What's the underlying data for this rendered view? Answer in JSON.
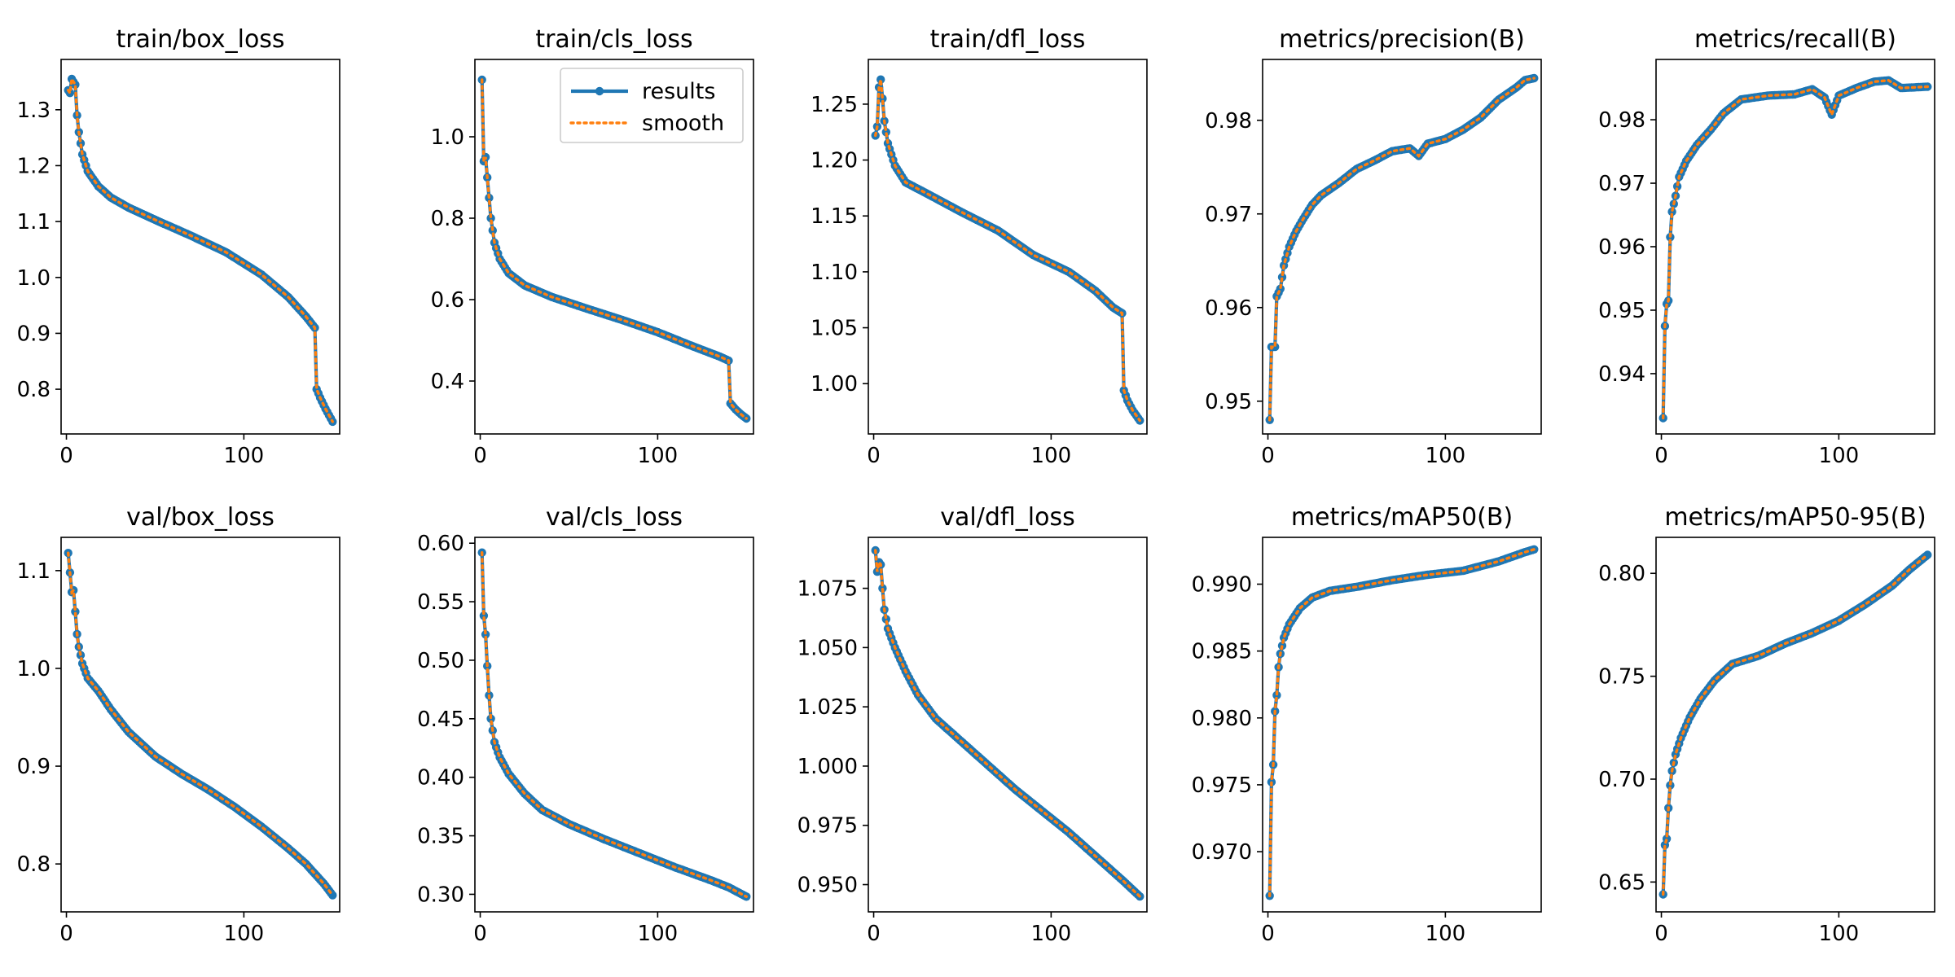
{
  "colors": {
    "results": "#1f77b4",
    "smooth": "#ff7f0e",
    "axes": "#000000",
    "background": "#ffffff"
  },
  "legend": {
    "results_label": "results",
    "smooth_label": "smooth",
    "placement": "upper-right of train/cls_loss"
  },
  "chart_data": [
    {
      "type": "line",
      "title": "train/box_loss",
      "xlim": [
        -3,
        154
      ],
      "ylim": [
        0.72,
        1.39
      ],
      "xticks": [
        0,
        100
      ],
      "xtick_labels": [
        "0",
        "100"
      ],
      "yticks": [
        0.8,
        0.9,
        1.0,
        1.1,
        1.2,
        1.3
      ],
      "ytick_labels": [
        "0.8",
        "0.9",
        "1.0",
        "1.1",
        "1.2",
        "1.3"
      ],
      "anchors": [
        [
          1,
          1.335
        ],
        [
          2,
          1.33
        ],
        [
          3,
          1.355
        ],
        [
          5,
          1.345
        ],
        [
          6,
          1.29
        ],
        [
          7,
          1.26
        ],
        [
          9,
          1.22
        ],
        [
          12,
          1.19
        ],
        [
          18,
          1.163
        ],
        [
          25,
          1.143
        ],
        [
          35,
          1.125
        ],
        [
          50,
          1.103
        ],
        [
          70,
          1.075
        ],
        [
          90,
          1.045
        ],
        [
          110,
          1.005
        ],
        [
          125,
          0.965
        ],
        [
          135,
          0.93
        ],
        [
          140,
          0.91
        ],
        [
          141,
          0.8
        ],
        [
          143,
          0.785
        ],
        [
          146,
          0.765
        ],
        [
          150,
          0.742
        ]
      ]
    },
    {
      "type": "line",
      "title": "train/cls_loss",
      "xlim": [
        -3,
        154
      ],
      "ylim": [
        0.27,
        1.19
      ],
      "xticks": [
        0,
        100
      ],
      "xtick_labels": [
        "0",
        "100"
      ],
      "yticks": [
        0.4,
        0.6,
        0.8,
        1.0
      ],
      "ytick_labels": [
        "0.4",
        "0.6",
        "0.8",
        "1.0"
      ],
      "anchors": [
        [
          1,
          1.14
        ],
        [
          2,
          0.94
        ],
        [
          3,
          0.95
        ],
        [
          4,
          0.9
        ],
        [
          6,
          0.8
        ],
        [
          8,
          0.74
        ],
        [
          11,
          0.7
        ],
        [
          16,
          0.665
        ],
        [
          25,
          0.635
        ],
        [
          40,
          0.607
        ],
        [
          60,
          0.578
        ],
        [
          80,
          0.55
        ],
        [
          100,
          0.52
        ],
        [
          120,
          0.485
        ],
        [
          135,
          0.46
        ],
        [
          140,
          0.45
        ],
        [
          141,
          0.345
        ],
        [
          144,
          0.33
        ],
        [
          147,
          0.318
        ],
        [
          150,
          0.308
        ]
      ]
    },
    {
      "type": "line",
      "title": "train/dfl_loss",
      "xlim": [
        -3,
        154
      ],
      "ylim": [
        0.955,
        1.29
      ],
      "xticks": [
        0,
        100
      ],
      "xtick_labels": [
        "0",
        "100"
      ],
      "yticks": [
        1.0,
        1.05,
        1.1,
        1.15,
        1.2,
        1.25
      ],
      "ytick_labels": [
        "1.00",
        "1.05",
        "1.10",
        "1.15",
        "1.20",
        "1.25"
      ],
      "anchors": [
        [
          1,
          1.222
        ],
        [
          2,
          1.23
        ],
        [
          3,
          1.265
        ],
        [
          4,
          1.272
        ],
        [
          5,
          1.255
        ],
        [
          6,
          1.235
        ],
        [
          8,
          1.215
        ],
        [
          12,
          1.195
        ],
        [
          18,
          1.18
        ],
        [
          30,
          1.17
        ],
        [
          50,
          1.153
        ],
        [
          70,
          1.137
        ],
        [
          90,
          1.115
        ],
        [
          110,
          1.1
        ],
        [
          125,
          1.083
        ],
        [
          135,
          1.068
        ],
        [
          140,
          1.063
        ],
        [
          141,
          0.994
        ],
        [
          143,
          0.985
        ],
        [
          146,
          0.976
        ],
        [
          150,
          0.967
        ]
      ]
    },
    {
      "type": "line",
      "title": "metrics/precision(B)",
      "xlim": [
        -3,
        154
      ],
      "ylim": [
        0.9465,
        0.9865
      ],
      "xticks": [
        0,
        100
      ],
      "xtick_labels": [
        "0",
        "100"
      ],
      "yticks": [
        0.95,
        0.96,
        0.97,
        0.98
      ],
      "ytick_labels": [
        "0.95",
        "0.96",
        "0.97",
        "0.98"
      ],
      "anchors": [
        [
          1,
          0.948
        ],
        [
          2,
          0.9558
        ],
        [
          4,
          0.9558
        ],
        [
          5,
          0.9612
        ],
        [
          7,
          0.962
        ],
        [
          9,
          0.9645
        ],
        [
          12,
          0.9665
        ],
        [
          16,
          0.9682
        ],
        [
          20,
          0.9695
        ],
        [
          25,
          0.971
        ],
        [
          30,
          0.972
        ],
        [
          40,
          0.9733
        ],
        [
          50,
          0.9748
        ],
        [
          60,
          0.9757
        ],
        [
          70,
          0.9767
        ],
        [
          80,
          0.977
        ],
        [
          85,
          0.9762
        ],
        [
          90,
          0.9775
        ],
        [
          100,
          0.978
        ],
        [
          110,
          0.979
        ],
        [
          120,
          0.9803
        ],
        [
          130,
          0.9822
        ],
        [
          140,
          0.9835
        ],
        [
          145,
          0.9843
        ],
        [
          150,
          0.9845
        ]
      ]
    },
    {
      "type": "line",
      "title": "metrics/recall(B)",
      "xlim": [
        -3,
        154
      ],
      "ylim": [
        0.9305,
        0.9895
      ],
      "xticks": [
        0,
        100
      ],
      "xtick_labels": [
        "0",
        "100"
      ],
      "yticks": [
        0.94,
        0.95,
        0.96,
        0.97,
        0.98
      ],
      "ytick_labels": [
        "0.94",
        "0.95",
        "0.96",
        "0.97",
        "0.98"
      ],
      "anchors": [
        [
          1,
          0.933
        ],
        [
          2,
          0.9475
        ],
        [
          3,
          0.951
        ],
        [
          4,
          0.9515
        ],
        [
          5,
          0.9615
        ],
        [
          6,
          0.9655
        ],
        [
          8,
          0.968
        ],
        [
          10,
          0.971
        ],
        [
          14,
          0.9735
        ],
        [
          20,
          0.976
        ],
        [
          28,
          0.9785
        ],
        [
          35,
          0.981
        ],
        [
          45,
          0.9832
        ],
        [
          60,
          0.9838
        ],
        [
          75,
          0.984
        ],
        [
          85,
          0.9848
        ],
        [
          92,
          0.9835
        ],
        [
          96,
          0.9808
        ],
        [
          100,
          0.9838
        ],
        [
          110,
          0.985
        ],
        [
          120,
          0.986
        ],
        [
          128,
          0.9862
        ],
        [
          135,
          0.985
        ],
        [
          150,
          0.9852
        ]
      ]
    },
    {
      "type": "line",
      "title": "val/box_loss",
      "xlim": [
        -3,
        154
      ],
      "ylim": [
        0.751,
        1.134
      ],
      "xticks": [
        0,
        100
      ],
      "xtick_labels": [
        "0",
        "100"
      ],
      "yticks": [
        0.8,
        0.9,
        1.0,
        1.1
      ],
      "ytick_labels": [
        "0.8",
        "0.9",
        "1.0",
        "1.1"
      ],
      "anchors": [
        [
          1,
          1.118
        ],
        [
          3,
          1.078
        ],
        [
          4,
          1.08
        ],
        [
          5,
          1.058
        ],
        [
          6,
          1.035
        ],
        [
          7,
          1.022
        ],
        [
          9,
          1.005
        ],
        [
          12,
          0.99
        ],
        [
          18,
          0.977
        ],
        [
          25,
          0.958
        ],
        [
          35,
          0.935
        ],
        [
          50,
          0.91
        ],
        [
          65,
          0.892
        ],
        [
          80,
          0.876
        ],
        [
          95,
          0.858
        ],
        [
          110,
          0.838
        ],
        [
          125,
          0.816
        ],
        [
          135,
          0.8
        ],
        [
          145,
          0.78
        ],
        [
          150,
          0.768
        ]
      ]
    },
    {
      "type": "line",
      "title": "val/cls_loss",
      "xlim": [
        -3,
        154
      ],
      "ylim": [
        0.285,
        0.605
      ],
      "xticks": [
        0,
        100
      ],
      "xtick_labels": [
        "0",
        "100"
      ],
      "yticks": [
        0.3,
        0.35,
        0.4,
        0.45,
        0.5,
        0.55,
        0.6
      ],
      "ytick_labels": [
        "0.30",
        "0.35",
        "0.40",
        "0.45",
        "0.50",
        "0.55",
        "0.60"
      ],
      "anchors": [
        [
          1,
          0.592
        ],
        [
          2,
          0.538
        ],
        [
          3,
          0.522
        ],
        [
          4,
          0.495
        ],
        [
          5,
          0.47
        ],
        [
          6,
          0.45
        ],
        [
          8,
          0.43
        ],
        [
          11,
          0.417
        ],
        [
          16,
          0.403
        ],
        [
          25,
          0.386
        ],
        [
          35,
          0.372
        ],
        [
          50,
          0.36
        ],
        [
          70,
          0.347
        ],
        [
          90,
          0.335
        ],
        [
          110,
          0.323
        ],
        [
          130,
          0.312
        ],
        [
          140,
          0.306
        ],
        [
          150,
          0.298
        ]
      ]
    },
    {
      "type": "line",
      "title": "val/dfl_loss",
      "xlim": [
        -3,
        154
      ],
      "ylim": [
        0.9385,
        1.0965
      ],
      "xticks": [
        0,
        100
      ],
      "xtick_labels": [
        "0",
        "100"
      ],
      "yticks": [
        0.95,
        0.975,
        1.0,
        1.025,
        1.05,
        1.075
      ],
      "ytick_labels": [
        "0.950",
        "0.975",
        "1.000",
        "1.025",
        "1.050",
        "1.075"
      ],
      "anchors": [
        [
          1,
          1.091
        ],
        [
          2,
          1.082
        ],
        [
          3,
          1.086
        ],
        [
          4,
          1.085
        ],
        [
          5,
          1.075
        ],
        [
          6,
          1.066
        ],
        [
          8,
          1.058
        ],
        [
          12,
          1.05
        ],
        [
          18,
          1.04
        ],
        [
          25,
          1.03
        ],
        [
          35,
          1.02
        ],
        [
          50,
          1.01
        ],
        [
          65,
          1.0
        ],
        [
          80,
          0.99
        ],
        [
          95,
          0.981
        ],
        [
          110,
          0.972
        ],
        [
          125,
          0.962
        ],
        [
          140,
          0.952
        ],
        [
          150,
          0.945
        ]
      ]
    },
    {
      "type": "line",
      "title": "metrics/mAP50(B)",
      "xlim": [
        -3,
        154
      ],
      "ylim": [
        0.9655,
        0.9935
      ],
      "xticks": [
        0,
        100
      ],
      "xtick_labels": [
        "0",
        "100"
      ],
      "yticks": [
        0.97,
        0.975,
        0.98,
        0.985,
        0.99
      ],
      "ytick_labels": [
        "0.970",
        "0.975",
        "0.980",
        "0.985",
        "0.990"
      ],
      "anchors": [
        [
          1,
          0.9667
        ],
        [
          2,
          0.9752
        ],
        [
          3,
          0.9765
        ],
        [
          4,
          0.9805
        ],
        [
          5,
          0.9817
        ],
        [
          6,
          0.9838
        ],
        [
          7,
          0.9848
        ],
        [
          9,
          0.986
        ],
        [
          12,
          0.987
        ],
        [
          18,
          0.9882
        ],
        [
          25,
          0.989
        ],
        [
          35,
          0.9895
        ],
        [
          50,
          0.9898
        ],
        [
          70,
          0.9903
        ],
        [
          90,
          0.9907
        ],
        [
          110,
          0.991
        ],
        [
          130,
          0.9917
        ],
        [
          145,
          0.9924
        ],
        [
          150,
          0.9926
        ]
      ]
    },
    {
      "type": "line",
      "title": "metrics/mAP50-95(B)",
      "xlim": [
        -3,
        154
      ],
      "ylim": [
        0.6355,
        0.8175
      ],
      "xticks": [
        0,
        100
      ],
      "xtick_labels": [
        "0",
        "100"
      ],
      "yticks": [
        0.65,
        0.7,
        0.75,
        0.8
      ],
      "ytick_labels": [
        "0.65",
        "0.70",
        "0.75",
        "0.80"
      ],
      "anchors": [
        [
          1,
          0.644
        ],
        [
          2,
          0.668
        ],
        [
          3,
          0.671
        ],
        [
          4,
          0.686
        ],
        [
          5,
          0.697
        ],
        [
          6,
          0.704
        ],
        [
          8,
          0.712
        ],
        [
          11,
          0.72
        ],
        [
          16,
          0.73
        ],
        [
          22,
          0.739
        ],
        [
          30,
          0.748
        ],
        [
          40,
          0.756
        ],
        [
          55,
          0.76
        ],
        [
          70,
          0.766
        ],
        [
          85,
          0.771
        ],
        [
          100,
          0.777
        ],
        [
          115,
          0.785
        ],
        [
          130,
          0.794
        ],
        [
          140,
          0.802
        ],
        [
          150,
          0.809
        ]
      ]
    }
  ]
}
